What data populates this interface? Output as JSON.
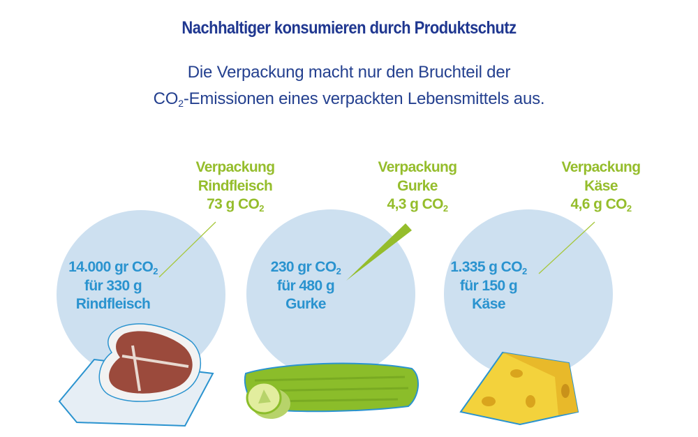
{
  "title": "Nachhaltiger konsumieren durch Produktschutz",
  "subtitle": {
    "line1": "Die Verpackung macht nur den Bruchteil der",
    "line2_pre": "CO",
    "line2_sub": "2",
    "line2_post": "-Emissionen eines verpackten Lebensmittels aus."
  },
  "colors": {
    "title": "#1f3790",
    "packaging_label": "#95bd2c",
    "product_text": "#2a93cf",
    "circle": "#cde0f0"
  },
  "items": [
    {
      "icon": "steak-icon",
      "packaging": {
        "line1": "Verpackung",
        "line2": "Rindfleisch",
        "line3_pre": "73 g CO",
        "line3_sub": "2"
      },
      "product": {
        "line1_pre": "14.000 gr CO",
        "line1_sub": "2",
        "line2": "für 330 g",
        "line3": "Rindfleisch"
      }
    },
    {
      "icon": "cucumber-icon",
      "packaging": {
        "line1": "Verpackung",
        "line2": "Gurke",
        "line3_pre": "4,3 g CO",
        "line3_sub": "2"
      },
      "product": {
        "line1_pre": "230 gr CO",
        "line1_sub": "2",
        "line2": "für 480 g",
        "line3": "Gurke"
      }
    },
    {
      "icon": "cheese-icon",
      "packaging": {
        "line1": "Verpackung",
        "line2": "Käse",
        "line3_pre": "4,6 g CO",
        "line3_sub": "2"
      },
      "product": {
        "line1_pre": "1.335 g CO",
        "line1_sub": "2",
        "line2": "für 150 g",
        "line3": "Käse"
      }
    }
  ]
}
